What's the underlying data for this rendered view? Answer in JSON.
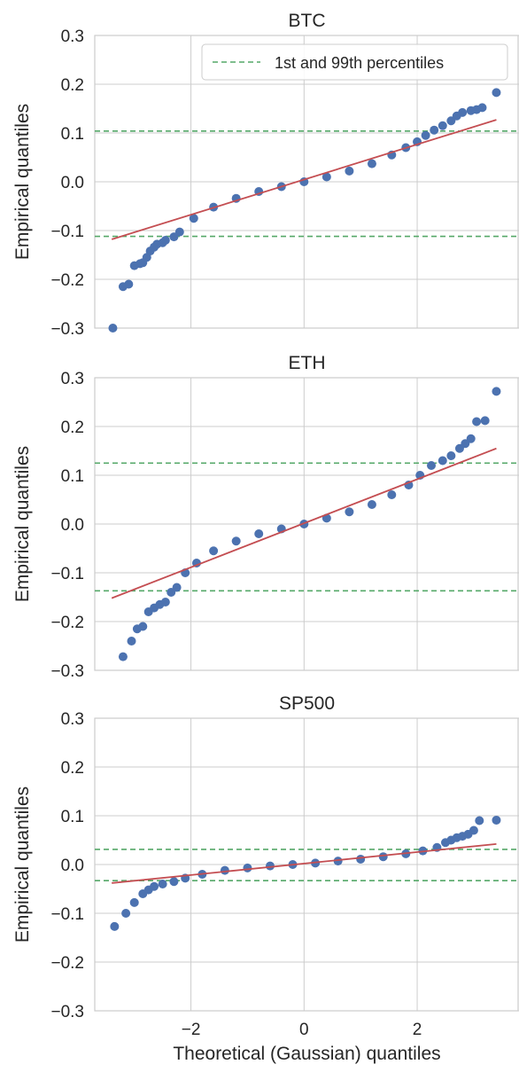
{
  "chart_data": [
    {
      "type": "scatter",
      "title": "BTC",
      "xlabel": "",
      "ylabel": "Empirical quantiles",
      "xlim": [
        -3.7,
        3.8
      ],
      "ylim": [
        -0.3,
        0.3
      ],
      "yticks": [
        -0.3,
        -0.2,
        -0.1,
        0.0,
        0.1,
        0.2,
        0.3
      ],
      "ytick_labels": [
        "−0.3",
        "−0.2",
        "−0.1",
        "0.0",
        "0.1",
        "0.2",
        "0.3"
      ],
      "xticks": [
        -2,
        0,
        2
      ],
      "xtick_labels": [],
      "grid": true,
      "legend": {
        "position": "top-right",
        "entries": [
          "1st and 99th percentiles"
        ]
      },
      "percentile_lines": [
        -0.112,
        0.104
      ],
      "fit_line": {
        "x": [
          -3.4,
          3.4
        ],
        "y": [
          -0.118,
          0.127
        ]
      },
      "points": {
        "x": [
          -3.38,
          -3.2,
          -3.1,
          -3.0,
          -2.9,
          -2.85,
          -2.78,
          -2.72,
          -2.65,
          -2.6,
          -2.5,
          -2.45,
          -2.3,
          -2.2,
          -1.95,
          -1.6,
          -1.2,
          -0.8,
          -0.4,
          0.0,
          0.4,
          0.8,
          1.2,
          1.55,
          1.8,
          2.0,
          2.15,
          2.3,
          2.45,
          2.6,
          2.7,
          2.8,
          2.95,
          3.05,
          3.15,
          3.4
        ],
        "y": [
          -0.3,
          -0.215,
          -0.21,
          -0.172,
          -0.168,
          -0.166,
          -0.155,
          -0.142,
          -0.134,
          -0.128,
          -0.125,
          -0.12,
          -0.113,
          -0.103,
          -0.075,
          -0.052,
          -0.034,
          -0.02,
          -0.01,
          0.0,
          0.01,
          0.022,
          0.037,
          0.055,
          0.07,
          0.082,
          0.095,
          0.106,
          0.115,
          0.125,
          0.135,
          0.142,
          0.146,
          0.148,
          0.152,
          0.183
        ]
      }
    },
    {
      "type": "scatter",
      "title": "ETH",
      "xlabel": "",
      "ylabel": "Empirical quantiles",
      "xlim": [
        -3.7,
        3.8
      ],
      "ylim": [
        -0.3,
        0.3
      ],
      "yticks": [
        -0.3,
        -0.2,
        -0.1,
        0.0,
        0.1,
        0.2,
        0.3
      ],
      "ytick_labels": [
        "−0.3",
        "−0.2",
        "−0.1",
        "0.0",
        "0.1",
        "0.2",
        "0.3"
      ],
      "xticks": [
        -2,
        0,
        2
      ],
      "xtick_labels": [],
      "grid": true,
      "percentile_lines": [
        -0.137,
        0.125
      ],
      "fit_line": {
        "x": [
          -3.4,
          3.4
        ],
        "y": [
          -0.152,
          0.155
        ]
      },
      "points": {
        "x": [
          -3.2,
          -3.05,
          -2.95,
          -2.85,
          -2.75,
          -2.65,
          -2.55,
          -2.45,
          -2.35,
          -2.25,
          -2.1,
          -1.9,
          -1.6,
          -1.2,
          -0.8,
          -0.4,
          0.0,
          0.4,
          0.8,
          1.2,
          1.55,
          1.85,
          2.05,
          2.25,
          2.45,
          2.6,
          2.75,
          2.85,
          2.95,
          3.05,
          3.2,
          3.4
        ],
        "y": [
          -0.272,
          -0.24,
          -0.215,
          -0.21,
          -0.18,
          -0.172,
          -0.165,
          -0.16,
          -0.14,
          -0.13,
          -0.1,
          -0.08,
          -0.055,
          -0.035,
          -0.02,
          -0.01,
          0.0,
          0.012,
          0.025,
          0.04,
          0.06,
          0.08,
          0.1,
          0.12,
          0.13,
          0.14,
          0.155,
          0.165,
          0.175,
          0.21,
          0.212,
          0.272
        ]
      }
    },
    {
      "type": "scatter",
      "title": "SP500",
      "xlabel": "Theoretical (Gaussian) quantiles",
      "ylabel": "Empirical quantiles",
      "xlim": [
        -3.7,
        3.8
      ],
      "ylim": [
        -0.3,
        0.3
      ],
      "yticks": [
        -0.3,
        -0.2,
        -0.1,
        0.0,
        0.1,
        0.2,
        0.3
      ],
      "ytick_labels": [
        "−0.3",
        "−0.2",
        "−0.1",
        "0.0",
        "0.1",
        "0.2",
        "0.3"
      ],
      "xticks": [
        -2,
        0,
        2
      ],
      "xtick_labels": [
        "−2",
        "0",
        "2"
      ],
      "grid": true,
      "percentile_lines": [
        -0.033,
        0.031
      ],
      "fit_line": {
        "x": [
          -3.4,
          3.4
        ],
        "y": [
          -0.038,
          0.042
        ]
      },
      "points": {
        "x": [
          -3.35,
          -3.15,
          -3.0,
          -2.85,
          -2.75,
          -2.65,
          -2.5,
          -2.3,
          -2.1,
          -1.8,
          -1.4,
          -1.0,
          -0.6,
          -0.2,
          0.2,
          0.6,
          1.0,
          1.4,
          1.8,
          2.1,
          2.35,
          2.5,
          2.6,
          2.7,
          2.8,
          2.9,
          3.0,
          3.1,
          3.4
        ],
        "y": [
          -0.127,
          -0.1,
          -0.078,
          -0.06,
          -0.052,
          -0.045,
          -0.04,
          -0.035,
          -0.028,
          -0.02,
          -0.012,
          -0.007,
          -0.003,
          0.0,
          0.003,
          0.007,
          0.011,
          0.016,
          0.022,
          0.028,
          0.035,
          0.045,
          0.05,
          0.055,
          0.058,
          0.062,
          0.07,
          0.09,
          0.091
        ]
      }
    }
  ],
  "colors": {
    "points": "#4c72b0",
    "fit_line": "#c44e52",
    "percentile_lines": "#55a868",
    "grid": "#cccccc",
    "axes_edge": "#cccccc"
  }
}
